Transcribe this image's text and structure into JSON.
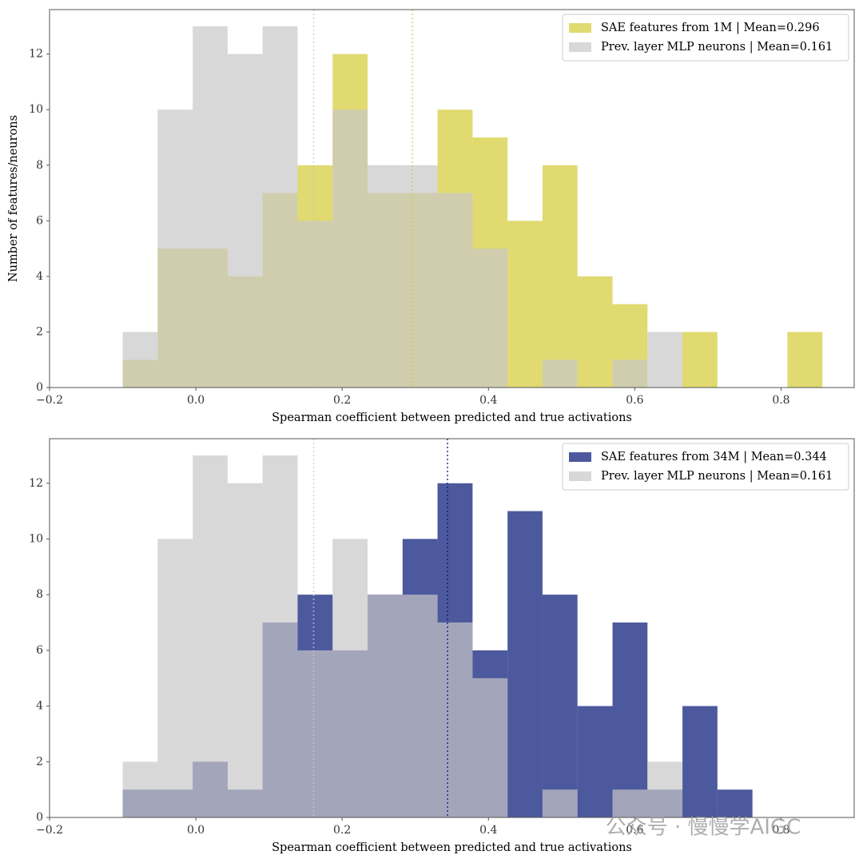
{
  "chart_data": [
    {
      "type": "histogram",
      "bins": [
        -0.1,
        -0.0522,
        -0.0043,
        0.0435,
        0.0913,
        0.1391,
        0.187,
        0.2348,
        0.2826,
        0.3304,
        0.3783,
        0.4261,
        0.4739,
        0.5217,
        0.5696,
        0.6174,
        0.6652,
        0.713,
        0.7609,
        0.8087,
        0.8565
      ],
      "series": [
        {
          "name": "SAE features from 1M | Mean=0.296",
          "color": "#d3ca33",
          "mean": 0.296,
          "values": [
            1,
            5,
            5,
            4,
            7,
            8,
            12,
            7,
            7,
            10,
            9,
            6,
            8,
            4,
            3,
            0,
            2,
            0,
            0,
            2
          ]
        },
        {
          "name": "Prev. layer MLP neurons | Mean=0.161",
          "color": "#c8c8c8",
          "mean": 0.161,
          "values": [
            2,
            10,
            13,
            12,
            13,
            6,
            10,
            8,
            8,
            7,
            5,
            0,
            1,
            0,
            1,
            2,
            0,
            0,
            0,
            0
          ]
        }
      ],
      "xlim": [
        -0.2,
        0.9
      ],
      "ylim": [
        0,
        13.6
      ],
      "xticks": [
        {
          "value": -0.2,
          "label": "−0.2"
        },
        {
          "value": 0,
          "label": "0.0"
        },
        0.2,
        0.4,
        0.6,
        0.8
      ],
      "yticks": [
        0,
        2,
        4,
        6,
        8,
        10,
        12
      ],
      "xlabel": "Spearman coefficient between predicted and true activations",
      "ylabel": "Number of features/neurons",
      "legend": "upper right"
    },
    {
      "type": "histogram",
      "bins": [
        -0.1,
        -0.0522,
        -0.0043,
        0.0435,
        0.0913,
        0.1391,
        0.187,
        0.2348,
        0.2826,
        0.3304,
        0.3783,
        0.4261,
        0.4739,
        0.5217,
        0.5696,
        0.6174,
        0.6652,
        0.713,
        0.7609,
        0.8087,
        0.8565
      ],
      "series": [
        {
          "name": "SAE features from 34M | Mean=0.344",
          "color": "#021374",
          "mean": 0.344,
          "values": [
            1,
            1,
            2,
            1,
            7,
            8,
            6,
            8,
            10,
            12,
            6,
            11,
            8,
            4,
            7,
            1,
            4,
            1,
            0,
            0
          ]
        },
        {
          "name": "Prev. layer MLP neurons | Mean=0.161",
          "color": "#c8c8c8",
          "mean": 0.161,
          "values": [
            2,
            10,
            13,
            12,
            13,
            6,
            10,
            8,
            8,
            7,
            5,
            0,
            1,
            0,
            1,
            2,
            0,
            0,
            0,
            0
          ]
        }
      ],
      "xlim": [
        -0.2,
        0.9
      ],
      "ylim": [
        0,
        13.6
      ],
      "xticks": [
        {
          "value": -0.2,
          "label": "−0.2"
        },
        {
          "value": 0,
          "label": "0.0"
        },
        0.2,
        0.4,
        0.6,
        0.8
      ],
      "yticks": [
        0,
        2,
        4,
        6,
        8,
        10,
        12
      ],
      "xlabel": "Spearman coefficient between predicted and true activations",
      "legend": "upper right"
    }
  ],
  "watermark": "公众号 · 慢慢学AIGC"
}
